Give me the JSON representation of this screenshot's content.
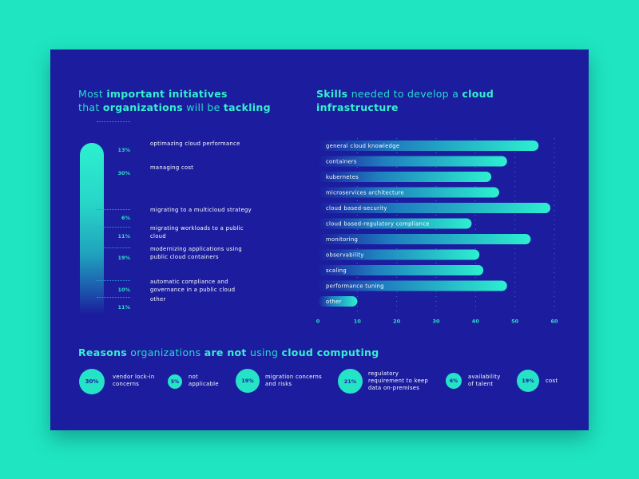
{
  "colors": {
    "background": "#1fe6c0",
    "card": "#1b1d9e",
    "accent": "#2fe0c8"
  },
  "initiatives": {
    "title_pre": "Most ",
    "title_b1": "important initiatives",
    "title_mid": "that ",
    "title_b2": "organizations",
    "title_mid2": " will be ",
    "title_b3": "tackling",
    "items": [
      {
        "pct": "13%",
        "label": "optimazing cloud performance"
      },
      {
        "pct": "30%",
        "label": "managing cost"
      },
      {
        "pct": "6%",
        "label": "migrating to a multicloud strategy"
      },
      {
        "pct": "11%",
        "label": "migrating workloads to a public cloud"
      },
      {
        "pct": "19%",
        "label": "modernizing applications using public cloud containers"
      },
      {
        "pct": "10%",
        "label": "automatic compliance and governance in a public cloud"
      },
      {
        "pct": "11%",
        "label": "other"
      }
    ]
  },
  "skills": {
    "title_b1": "Skills",
    "title_mid": " needed to develop a ",
    "title_b2": "cloud",
    "title_b3": "infrastructure"
  },
  "chart_data": {
    "type": "bar",
    "orientation": "horizontal",
    "categories": [
      "general cloud knowledge",
      "containers",
      "kubernetes",
      "microservices architecture",
      "cloud based-security",
      "cloud based-regulatory compliance",
      "monitoring",
      "observability",
      "scaling",
      "performance tuning",
      "other"
    ],
    "values": [
      56,
      48,
      44,
      46,
      59,
      39,
      54,
      41,
      42,
      48,
      10
    ],
    "xlim": [
      0,
      60
    ],
    "xticks": [
      "0",
      "10",
      "20",
      "30",
      "40",
      "50",
      "60"
    ],
    "grid": "dotted vertical"
  },
  "reasons": {
    "title_b1": "Reasons",
    "title_mid": " organizations ",
    "title_b2": "are not",
    "title_mid2": " using ",
    "title_b3": "cloud computing",
    "items": [
      {
        "pct": "30%",
        "label": "vendor lock-in concerns"
      },
      {
        "pct": "5%",
        "label": "not applicable"
      },
      {
        "pct": "19%",
        "label": "migration concerns and risks"
      },
      {
        "pct": "21%",
        "label": "regulatory requirement to keep data on-premises"
      },
      {
        "pct": "6%",
        "label": "availability of talent"
      },
      {
        "pct": "19%",
        "label": "cost"
      }
    ]
  }
}
